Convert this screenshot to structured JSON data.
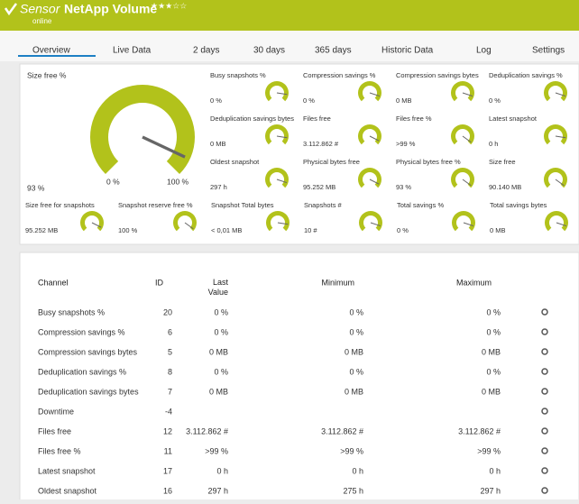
{
  "header": {
    "prefix": "Sensor",
    "title": "NetApp Volume",
    "status": "online"
  },
  "tabs": [
    "Overview",
    "Live Data",
    "2  days",
    "30  days",
    "365  days",
    "Historic Data",
    "Log",
    "Settings"
  ],
  "main_gauge": {
    "label": "Size free %",
    "value": "93 %",
    "min": "0 %",
    "max": "100 %"
  },
  "gauges": [
    {
      "label": "Busy snapshots %",
      "value": "0 %"
    },
    {
      "label": "Compression savings %",
      "value": "0 %"
    },
    {
      "label": "Compression savings bytes",
      "value": "0 MB"
    },
    {
      "label": "Deduplication savings %",
      "value": "0 %"
    },
    {
      "label": "Deduplication savings bytes",
      "value": "0 MB"
    },
    {
      "label": "Files free",
      "value": "3.112.862 #"
    },
    {
      "label": "Files free %",
      "value": ">99 %"
    },
    {
      "label": "Latest snapshot",
      "value": "0 h"
    },
    {
      "label": "Oldest snapshot",
      "value": "297 h"
    },
    {
      "label": "Physical bytes free",
      "value": "95.252 MB"
    },
    {
      "label": "Physical bytes free %",
      "value": "93 %"
    },
    {
      "label": "Size free",
      "value": "90.140 MB"
    },
    {
      "label": "Size free for snapshots",
      "value": "95.252 MB"
    },
    {
      "label": "Snapshot reserve free %",
      "value": "100 %"
    },
    {
      "label": "Snapshot Total bytes",
      "value": "< 0,01 MB"
    },
    {
      "label": "Snapshots #",
      "value": "10 #"
    },
    {
      "label": "Total savings %",
      "value": "0 %"
    },
    {
      "label": "Total savings bytes",
      "value": "0 MB"
    }
  ],
  "table": {
    "columns": [
      "Channel",
      "ID",
      "Last Value",
      "Minimum",
      "Maximum"
    ],
    "rows": [
      [
        "Busy snapshots %",
        "20",
        "0 %",
        "0 %",
        "0 %"
      ],
      [
        "Compression savings %",
        "6",
        "0 %",
        "0 %",
        "0 %"
      ],
      [
        "Compression savings bytes",
        "5",
        "0 MB",
        "0 MB",
        "0 MB"
      ],
      [
        "Deduplication savings %",
        "8",
        "0 %",
        "0 %",
        "0 %"
      ],
      [
        "Deduplication savings bytes",
        "7",
        "0 MB",
        "0 MB",
        "0 MB"
      ],
      [
        "Downtime",
        "-4",
        null,
        null,
        null
      ],
      [
        "Files free",
        "12",
        "3.112.862 #",
        "3.112.862 #",
        "3.112.862 #"
      ],
      [
        "Files free %",
        "11",
        ">99 %",
        ">99 %",
        ">99 %"
      ],
      [
        "Latest snapshot",
        "17",
        "0 h",
        "0 h",
        "0 h"
      ],
      [
        "Oldest snapshot",
        "16",
        "297 h",
        "275 h",
        "297 h"
      ]
    ]
  }
}
